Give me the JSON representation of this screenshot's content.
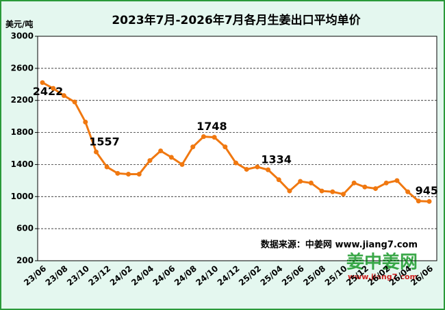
{
  "chart_data": {
    "type": "line",
    "title": "2023年7月-2026年7月各月生姜出口平均单价",
    "y_label": "美元/吨",
    "source": "数据来源：中姜网 www.jiang7.com",
    "logo": "姜中姜网",
    "logo_url": "www.jiang7.com",
    "categories": [
      "23/06",
      null,
      "23/08",
      null,
      "23/10",
      null,
      "23/12",
      null,
      "24/02",
      null,
      "24/04",
      null,
      "24/06",
      null,
      "24/08",
      null,
      "24/10",
      null,
      "24/12",
      null,
      "25/02",
      null,
      "25/04",
      null,
      "25/06",
      null,
      "25/08",
      null,
      "25/10",
      null,
      "25/12",
      null,
      "26/02",
      null,
      "26/04",
      null,
      "26/06"
    ],
    "series": [
      {
        "name": "出口平均单价",
        "color": "#f07810",
        "values": [
          2422,
          2350,
          2260,
          2180,
          1930,
          1557,
          1370,
          1290,
          1280,
          1280,
          1450,
          1570,
          1490,
          1400,
          1620,
          1748,
          1740,
          1620,
          1420,
          1340,
          1370,
          1334,
          1210,
          1070,
          1190,
          1170,
          1070,
          1060,
          1030,
          1170,
          1120,
          1100,
          1170,
          1200,
          1060,
          945,
          940
        ],
        "value_labels": [
          "2422",
          null,
          null,
          null,
          null,
          "1557",
          null,
          null,
          null,
          null,
          null,
          null,
          null,
          null,
          null,
          "1748",
          null,
          null,
          null,
          null,
          null,
          "1334",
          null,
          null,
          null,
          null,
          null,
          null,
          null,
          null,
          null,
          null,
          null,
          null,
          null,
          "945",
          null
        ]
      }
    ],
    "ylim": [
      200,
      3000
    ],
    "yticks": [
      200,
      600,
      1000,
      1400,
      1800,
      2200,
      2600,
      3000
    ],
    "grid": true
  }
}
